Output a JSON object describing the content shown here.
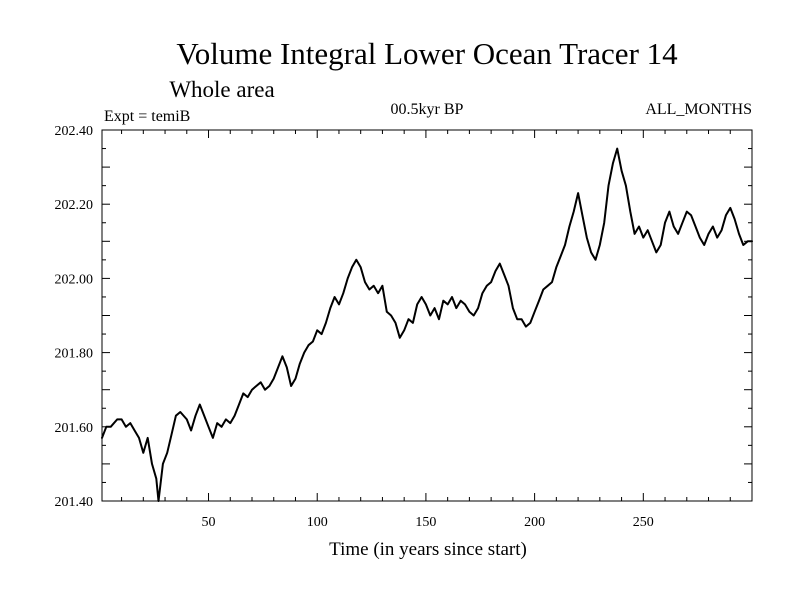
{
  "chart_data": {
    "type": "line",
    "title": "Volume Integral Lower Ocean Tracer 14",
    "subtitle": "Whole area",
    "left_note": "Expt = temiB",
    "center_note": "00.5kyr BP",
    "right_note": "ALL_MONTHS",
    "xlabel": "Time (in years since start)",
    "ylabel": "",
    "xlim": [
      1,
      300
    ],
    "ylim": [
      201.4,
      202.4
    ],
    "x_ticks": [
      50,
      100,
      150,
      200,
      250
    ],
    "x_tick_labels": [
      "50",
      "100",
      "150",
      "200",
      "250"
    ],
    "y_ticks": [
      201.4,
      201.6,
      201.8,
      202.0,
      202.2,
      202.4
    ],
    "y_tick_labels": [
      "201.40",
      "201.60",
      "201.80",
      "202.00",
      "202.20",
      "202.40"
    ],
    "grid": false,
    "line_color": "#000000",
    "series": [
      {
        "name": "Tracer 14",
        "x": [
          1,
          3,
          5,
          8,
          10,
          12,
          14,
          16,
          18,
          20,
          22,
          24,
          26,
          27,
          29,
          31,
          33,
          35,
          37,
          40,
          42,
          44,
          46,
          48,
          50,
          52,
          54,
          56,
          58,
          60,
          62,
          64,
          66,
          68,
          70,
          72,
          74,
          76,
          78,
          80,
          82,
          84,
          86,
          88,
          90,
          92,
          94,
          96,
          98,
          100,
          102,
          104,
          106,
          108,
          110,
          112,
          114,
          116,
          118,
          120,
          122,
          124,
          126,
          128,
          130,
          132,
          134,
          136,
          138,
          140,
          142,
          144,
          146,
          148,
          150,
          152,
          154,
          156,
          158,
          160,
          162,
          164,
          166,
          168,
          170,
          172,
          174,
          176,
          178,
          180,
          182,
          184,
          186,
          188,
          190,
          192,
          194,
          196,
          198,
          200,
          202,
          204,
          206,
          208,
          210,
          212,
          214,
          216,
          218,
          220,
          222,
          224,
          226,
          228,
          230,
          232,
          234,
          236,
          238,
          240,
          242,
          244,
          246,
          248,
          250,
          252,
          254,
          256,
          258,
          260,
          262,
          264,
          266,
          268,
          270,
          272,
          274,
          276,
          278,
          280,
          282,
          284,
          286,
          288,
          290,
          292,
          294,
          296,
          298,
          300
        ],
        "values": [
          201.57,
          201.6,
          201.6,
          201.62,
          201.62,
          201.6,
          201.61,
          201.59,
          201.57,
          201.53,
          201.57,
          201.5,
          201.46,
          201.4,
          201.5,
          201.53,
          201.58,
          201.63,
          201.64,
          201.62,
          201.59,
          201.63,
          201.66,
          201.63,
          201.6,
          201.57,
          201.61,
          201.6,
          201.62,
          201.61,
          201.63,
          201.66,
          201.69,
          201.68,
          201.7,
          201.71,
          201.72,
          201.7,
          201.71,
          201.73,
          201.76,
          201.79,
          201.76,
          201.71,
          201.73,
          201.77,
          201.8,
          201.82,
          201.83,
          201.86,
          201.85,
          201.88,
          201.92,
          201.95,
          201.93,
          201.96,
          202.0,
          202.03,
          202.05,
          202.03,
          201.99,
          201.97,
          201.98,
          201.96,
          201.98,
          201.91,
          201.9,
          201.88,
          201.84,
          201.86,
          201.89,
          201.88,
          201.93,
          201.95,
          201.93,
          201.9,
          201.92,
          201.89,
          201.94,
          201.93,
          201.95,
          201.92,
          201.94,
          201.93,
          201.91,
          201.9,
          201.92,
          201.96,
          201.98,
          201.99,
          202.02,
          202.04,
          202.01,
          201.98,
          201.92,
          201.89,
          201.89,
          201.87,
          201.88,
          201.91,
          201.94,
          201.97,
          201.98,
          201.99,
          202.03,
          202.06,
          202.09,
          202.14,
          202.18,
          202.23,
          202.17,
          202.11,
          202.07,
          202.05,
          202.09,
          202.15,
          202.25,
          202.31,
          202.35,
          202.29,
          202.25,
          202.18,
          202.12,
          202.14,
          202.11,
          202.13,
          202.1,
          202.07,
          202.09,
          202.15,
          202.18,
          202.14,
          202.12,
          202.15,
          202.18,
          202.17,
          202.14,
          202.11,
          202.09,
          202.12,
          202.14,
          202.11,
          202.13,
          202.17,
          202.19,
          202.16,
          202.12,
          202.09,
          202.1,
          202.1
        ]
      }
    ]
  }
}
